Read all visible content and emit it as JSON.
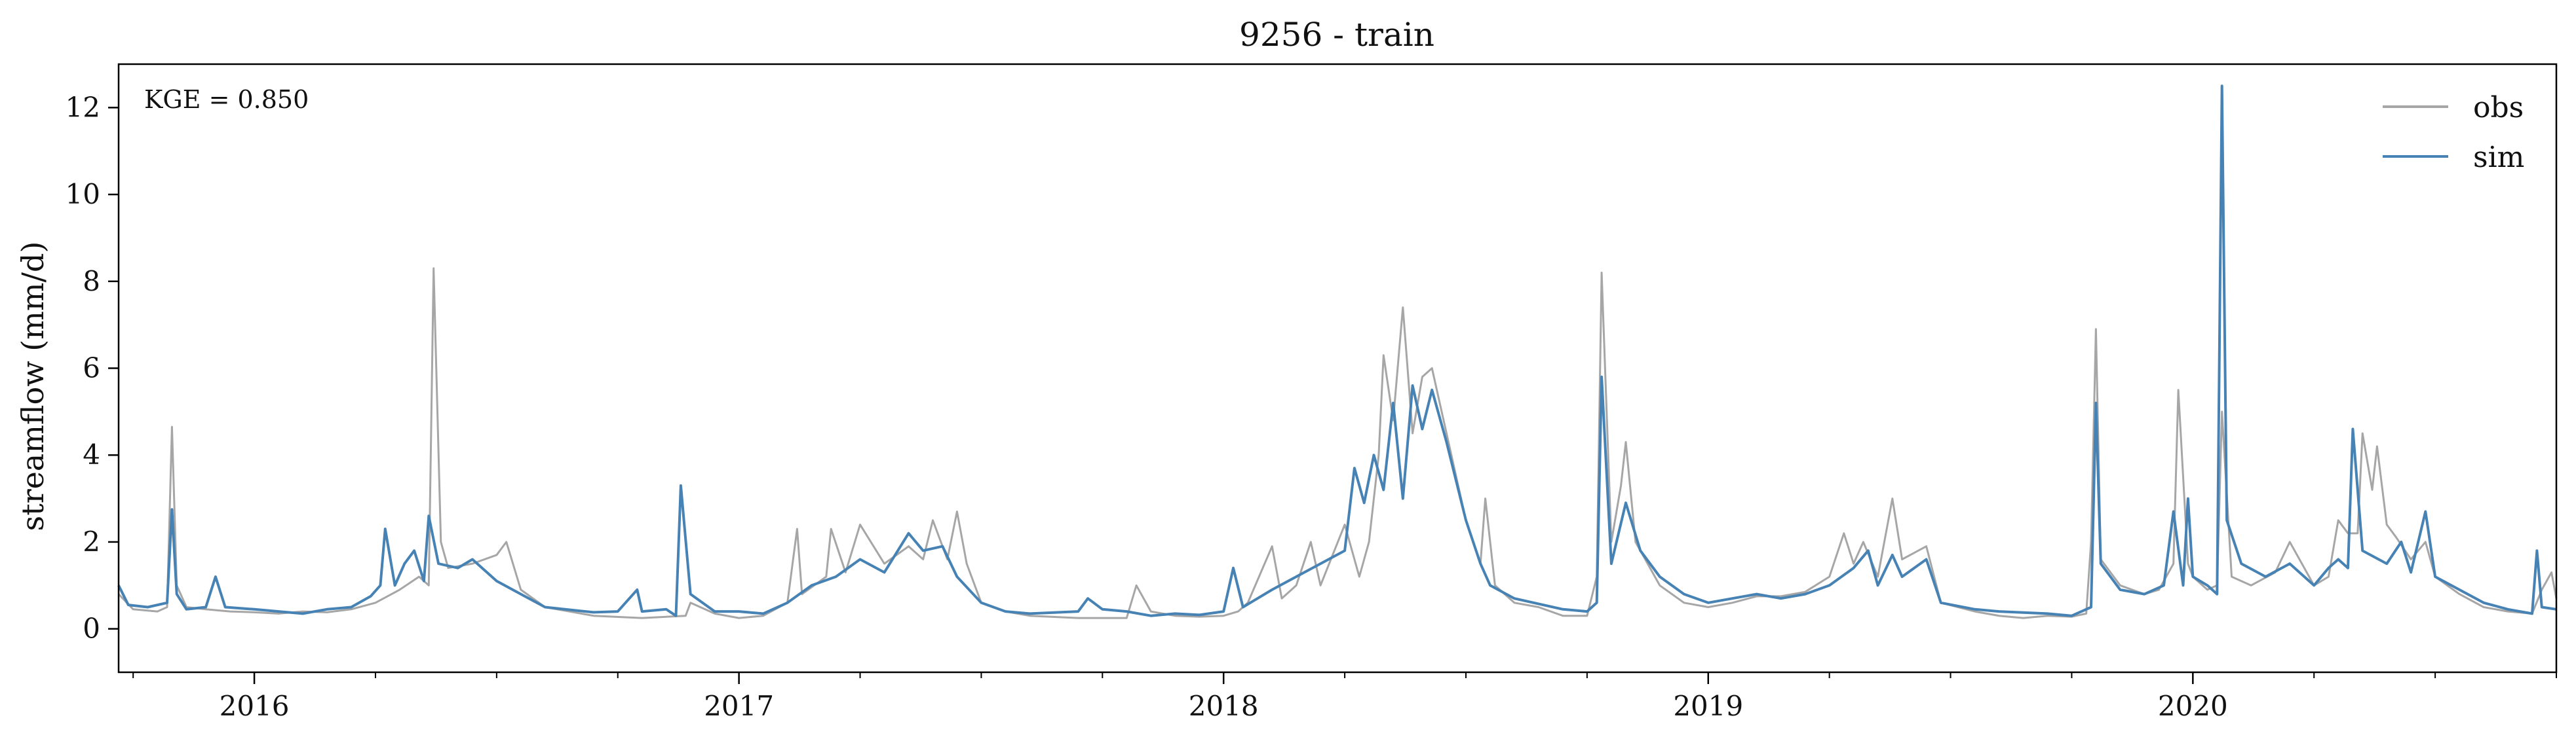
{
  "chart_data": {
    "type": "line",
    "title": "9256 - train",
    "xlabel": "",
    "ylabel": "streamflow (mm/d)",
    "annotation": "KGE = 0.850",
    "xlim": [
      2015.72,
      2020.75
    ],
    "ylim": [
      -1,
      13
    ],
    "x_ticks": [
      2016,
      2017,
      2018,
      2019,
      2020
    ],
    "x_tick_labels": [
      "2016",
      "2017",
      "2018",
      "2019",
      "2020"
    ],
    "y_ticks": [
      0,
      2,
      4,
      6,
      8,
      10,
      12
    ],
    "y_tick_labels": [
      "0",
      "2",
      "4",
      "6",
      "8",
      "10",
      "12"
    ],
    "grid": false,
    "legend": {
      "placement": "top-right",
      "entries": [
        "obs",
        "sim"
      ]
    },
    "series": [
      {
        "name": "obs",
        "color": "#a6a6a6",
        "points": [
          [
            2015.72,
            0.8
          ],
          [
            2015.75,
            0.45
          ],
          [
            2015.8,
            0.4
          ],
          [
            2015.82,
            0.5
          ],
          [
            2015.83,
            4.65
          ],
          [
            2015.84,
            1.0
          ],
          [
            2015.86,
            0.5
          ],
          [
            2015.9,
            0.45
          ],
          [
            2015.95,
            0.4
          ],
          [
            2016.0,
            0.38
          ],
          [
            2016.05,
            0.35
          ],
          [
            2016.1,
            0.4
          ],
          [
            2016.15,
            0.38
          ],
          [
            2016.2,
            0.45
          ],
          [
            2016.25,
            0.6
          ],
          [
            2016.3,
            0.9
          ],
          [
            2016.34,
            1.2
          ],
          [
            2016.36,
            1.0
          ],
          [
            2016.37,
            8.3
          ],
          [
            2016.385,
            2.0
          ],
          [
            2016.4,
            1.4
          ],
          [
            2016.45,
            1.5
          ],
          [
            2016.5,
            1.7
          ],
          [
            2016.52,
            2.0
          ],
          [
            2016.55,
            0.9
          ],
          [
            2016.6,
            0.5
          ],
          [
            2016.7,
            0.3
          ],
          [
            2016.8,
            0.25
          ],
          [
            2016.89,
            0.3
          ],
          [
            2016.9,
            0.6
          ],
          [
            2016.95,
            0.35
          ],
          [
            2017.0,
            0.25
          ],
          [
            2017.05,
            0.3
          ],
          [
            2017.1,
            0.6
          ],
          [
            2017.12,
            2.3
          ],
          [
            2017.13,
            0.8
          ],
          [
            2017.18,
            1.2
          ],
          [
            2017.19,
            2.3
          ],
          [
            2017.22,
            1.3
          ],
          [
            2017.25,
            2.4
          ],
          [
            2017.3,
            1.5
          ],
          [
            2017.35,
            1.9
          ],
          [
            2017.38,
            1.6
          ],
          [
            2017.4,
            2.5
          ],
          [
            2017.43,
            1.6
          ],
          [
            2017.45,
            2.7
          ],
          [
            2017.47,
            1.5
          ],
          [
            2017.5,
            0.6
          ],
          [
            2017.55,
            0.4
          ],
          [
            2017.6,
            0.3
          ],
          [
            2017.7,
            0.25
          ],
          [
            2017.8,
            0.25
          ],
          [
            2017.82,
            1.0
          ],
          [
            2017.85,
            0.4
          ],
          [
            2017.9,
            0.3
          ],
          [
            2017.95,
            0.28
          ],
          [
            2018.0,
            0.3
          ],
          [
            2018.03,
            0.4
          ],
          [
            2018.05,
            0.6
          ],
          [
            2018.1,
            1.9
          ],
          [
            2018.12,
            0.7
          ],
          [
            2018.15,
            1.0
          ],
          [
            2018.18,
            2.0
          ],
          [
            2018.2,
            1.0
          ],
          [
            2018.25,
            2.4
          ],
          [
            2018.28,
            1.2
          ],
          [
            2018.3,
            2.0
          ],
          [
            2018.32,
            4.0
          ],
          [
            2018.33,
            6.3
          ],
          [
            2018.35,
            4.8
          ],
          [
            2018.37,
            7.4
          ],
          [
            2018.39,
            4.5
          ],
          [
            2018.41,
            5.8
          ],
          [
            2018.43,
            6.0
          ],
          [
            2018.46,
            4.5
          ],
          [
            2018.5,
            2.5
          ],
          [
            2018.53,
            1.5
          ],
          [
            2018.54,
            3.0
          ],
          [
            2018.56,
            1.0
          ],
          [
            2018.6,
            0.6
          ],
          [
            2018.65,
            0.5
          ],
          [
            2018.7,
            0.3
          ],
          [
            2018.75,
            0.3
          ],
          [
            2018.77,
            1.2
          ],
          [
            2018.78,
            8.2
          ],
          [
            2018.8,
            2.0
          ],
          [
            2018.82,
            3.3
          ],
          [
            2018.83,
            4.3
          ],
          [
            2018.85,
            2.0
          ],
          [
            2018.9,
            1.0
          ],
          [
            2018.95,
            0.6
          ],
          [
            2019.0,
            0.5
          ],
          [
            2019.05,
            0.6
          ],
          [
            2019.1,
            0.75
          ],
          [
            2019.15,
            0.75
          ],
          [
            2019.2,
            0.85
          ],
          [
            2019.25,
            1.2
          ],
          [
            2019.28,
            2.2
          ],
          [
            2019.3,
            1.5
          ],
          [
            2019.32,
            2.0
          ],
          [
            2019.35,
            1.2
          ],
          [
            2019.38,
            3.0
          ],
          [
            2019.4,
            1.6
          ],
          [
            2019.45,
            1.9
          ],
          [
            2019.48,
            0.6
          ],
          [
            2019.55,
            0.4
          ],
          [
            2019.6,
            0.3
          ],
          [
            2019.65,
            0.25
          ],
          [
            2019.7,
            0.3
          ],
          [
            2019.75,
            0.28
          ],
          [
            2019.78,
            0.35
          ],
          [
            2019.79,
            2.0
          ],
          [
            2019.8,
            6.9
          ],
          [
            2019.81,
            1.6
          ],
          [
            2019.85,
            1.0
          ],
          [
            2019.9,
            0.8
          ],
          [
            2019.93,
            0.9
          ],
          [
            2019.96,
            1.5
          ],
          [
            2019.97,
            5.5
          ],
          [
            2019.99,
            1.5
          ],
          [
            2020.0,
            1.2
          ],
          [
            2020.03,
            0.9
          ],
          [
            2020.05,
            1.0
          ],
          [
            2020.06,
            5.0
          ],
          [
            2020.08,
            1.2
          ],
          [
            2020.12,
            1.0
          ],
          [
            2020.17,
            1.3
          ],
          [
            2020.2,
            2.0
          ],
          [
            2020.25,
            1.0
          ],
          [
            2020.28,
            1.2
          ],
          [
            2020.3,
            2.5
          ],
          [
            2020.32,
            2.2
          ],
          [
            2020.34,
            2.2
          ],
          [
            2020.35,
            4.5
          ],
          [
            2020.37,
            3.2
          ],
          [
            2020.38,
            4.2
          ],
          [
            2020.4,
            2.4
          ],
          [
            2020.42,
            2.1
          ],
          [
            2020.45,
            1.6
          ],
          [
            2020.48,
            2.0
          ],
          [
            2020.5,
            1.2
          ],
          [
            2020.55,
            0.8
          ],
          [
            2020.6,
            0.5
          ],
          [
            2020.65,
            0.4
          ],
          [
            2020.7,
            0.35
          ],
          [
            2020.72,
            0.9
          ],
          [
            2020.74,
            1.3
          ],
          [
            2020.75,
            0.7
          ]
        ]
      },
      {
        "name": "sim",
        "color": "#4682b4",
        "points": [
          [
            2015.72,
            1.0
          ],
          [
            2015.74,
            0.55
          ],
          [
            2015.78,
            0.5
          ],
          [
            2015.82,
            0.6
          ],
          [
            2015.83,
            2.75
          ],
          [
            2015.84,
            0.8
          ],
          [
            2015.86,
            0.45
          ],
          [
            2015.9,
            0.5
          ],
          [
            2015.92,
            1.2
          ],
          [
            2015.94,
            0.5
          ],
          [
            2016.0,
            0.45
          ],
          [
            2016.05,
            0.4
          ],
          [
            2016.1,
            0.35
          ],
          [
            2016.15,
            0.45
          ],
          [
            2016.2,
            0.5
          ],
          [
            2016.24,
            0.75
          ],
          [
            2016.26,
            1.0
          ],
          [
            2016.27,
            2.3
          ],
          [
            2016.29,
            1.0
          ],
          [
            2016.31,
            1.5
          ],
          [
            2016.33,
            1.8
          ],
          [
            2016.35,
            1.1
          ],
          [
            2016.36,
            2.6
          ],
          [
            2016.38,
            1.5
          ],
          [
            2016.42,
            1.4
          ],
          [
            2016.45,
            1.6
          ],
          [
            2016.48,
            1.3
          ],
          [
            2016.5,
            1.1
          ],
          [
            2016.55,
            0.8
          ],
          [
            2016.6,
            0.5
          ],
          [
            2016.7,
            0.38
          ],
          [
            2016.75,
            0.4
          ],
          [
            2016.79,
            0.9
          ],
          [
            2016.8,
            0.4
          ],
          [
            2016.85,
            0.45
          ],
          [
            2016.87,
            0.3
          ],
          [
            2016.88,
            3.3
          ],
          [
            2016.9,
            0.8
          ],
          [
            2016.95,
            0.4
          ],
          [
            2017.0,
            0.4
          ],
          [
            2017.05,
            0.35
          ],
          [
            2017.1,
            0.6
          ],
          [
            2017.15,
            1.0
          ],
          [
            2017.2,
            1.2
          ],
          [
            2017.25,
            1.6
          ],
          [
            2017.3,
            1.3
          ],
          [
            2017.35,
            2.2
          ],
          [
            2017.38,
            1.8
          ],
          [
            2017.42,
            1.9
          ],
          [
            2017.45,
            1.2
          ],
          [
            2017.5,
            0.6
          ],
          [
            2017.55,
            0.4
          ],
          [
            2017.6,
            0.35
          ],
          [
            2017.7,
            0.4
          ],
          [
            2017.72,
            0.7
          ],
          [
            2017.75,
            0.45
          ],
          [
            2017.8,
            0.4
          ],
          [
            2017.85,
            0.3
          ],
          [
            2017.9,
            0.35
          ],
          [
            2017.95,
            0.32
          ],
          [
            2018.0,
            0.4
          ],
          [
            2018.02,
            1.4
          ],
          [
            2018.04,
            0.5
          ],
          [
            2018.1,
            0.9
          ],
          [
            2018.15,
            1.2
          ],
          [
            2018.2,
            1.5
          ],
          [
            2018.25,
            1.8
          ],
          [
            2018.27,
            3.7
          ],
          [
            2018.29,
            2.9
          ],
          [
            2018.31,
            4.0
          ],
          [
            2018.33,
            3.2
          ],
          [
            2018.35,
            5.2
          ],
          [
            2018.37,
            3.0
          ],
          [
            2018.39,
            5.6
          ],
          [
            2018.41,
            4.6
          ],
          [
            2018.43,
            5.5
          ],
          [
            2018.46,
            4.3
          ],
          [
            2018.5,
            2.5
          ],
          [
            2018.53,
            1.5
          ],
          [
            2018.55,
            1.0
          ],
          [
            2018.6,
            0.7
          ],
          [
            2018.7,
            0.45
          ],
          [
            2018.75,
            0.4
          ],
          [
            2018.77,
            0.6
          ],
          [
            2018.78,
            5.8
          ],
          [
            2018.8,
            1.5
          ],
          [
            2018.83,
            2.9
          ],
          [
            2018.86,
            1.8
          ],
          [
            2018.9,
            1.2
          ],
          [
            2018.95,
            0.8
          ],
          [
            2019.0,
            0.6
          ],
          [
            2019.05,
            0.7
          ],
          [
            2019.1,
            0.8
          ],
          [
            2019.15,
            0.7
          ],
          [
            2019.2,
            0.8
          ],
          [
            2019.25,
            1.0
          ],
          [
            2019.3,
            1.4
          ],
          [
            2019.33,
            1.8
          ],
          [
            2019.35,
            1.0
          ],
          [
            2019.38,
            1.7
          ],
          [
            2019.4,
            1.2
          ],
          [
            2019.45,
            1.6
          ],
          [
            2019.48,
            0.6
          ],
          [
            2019.55,
            0.45
          ],
          [
            2019.6,
            0.4
          ],
          [
            2019.7,
            0.35
          ],
          [
            2019.75,
            0.3
          ],
          [
            2019.79,
            0.5
          ],
          [
            2019.8,
            5.2
          ],
          [
            2019.81,
            1.5
          ],
          [
            2019.85,
            0.9
          ],
          [
            2019.9,
            0.8
          ],
          [
            2019.94,
            1.0
          ],
          [
            2019.96,
            2.7
          ],
          [
            2019.98,
            1.0
          ],
          [
            2019.99,
            3.0
          ],
          [
            2020.0,
            1.2
          ],
          [
            2020.03,
            1.0
          ],
          [
            2020.05,
            0.8
          ],
          [
            2020.06,
            12.5
          ],
          [
            2020.07,
            2.5
          ],
          [
            2020.1,
            1.5
          ],
          [
            2020.15,
            1.2
          ],
          [
            2020.2,
            1.5
          ],
          [
            2020.25,
            1.0
          ],
          [
            2020.28,
            1.4
          ],
          [
            2020.3,
            1.6
          ],
          [
            2020.32,
            1.4
          ],
          [
            2020.33,
            4.6
          ],
          [
            2020.35,
            1.8
          ],
          [
            2020.4,
            1.5
          ],
          [
            2020.43,
            2.0
          ],
          [
            2020.45,
            1.3
          ],
          [
            2020.48,
            2.7
          ],
          [
            2020.5,
            1.2
          ],
          [
            2020.55,
            0.9
          ],
          [
            2020.6,
            0.6
          ],
          [
            2020.65,
            0.45
          ],
          [
            2020.7,
            0.35
          ],
          [
            2020.71,
            1.8
          ],
          [
            2020.72,
            0.5
          ],
          [
            2020.75,
            0.45
          ]
        ]
      }
    ]
  }
}
